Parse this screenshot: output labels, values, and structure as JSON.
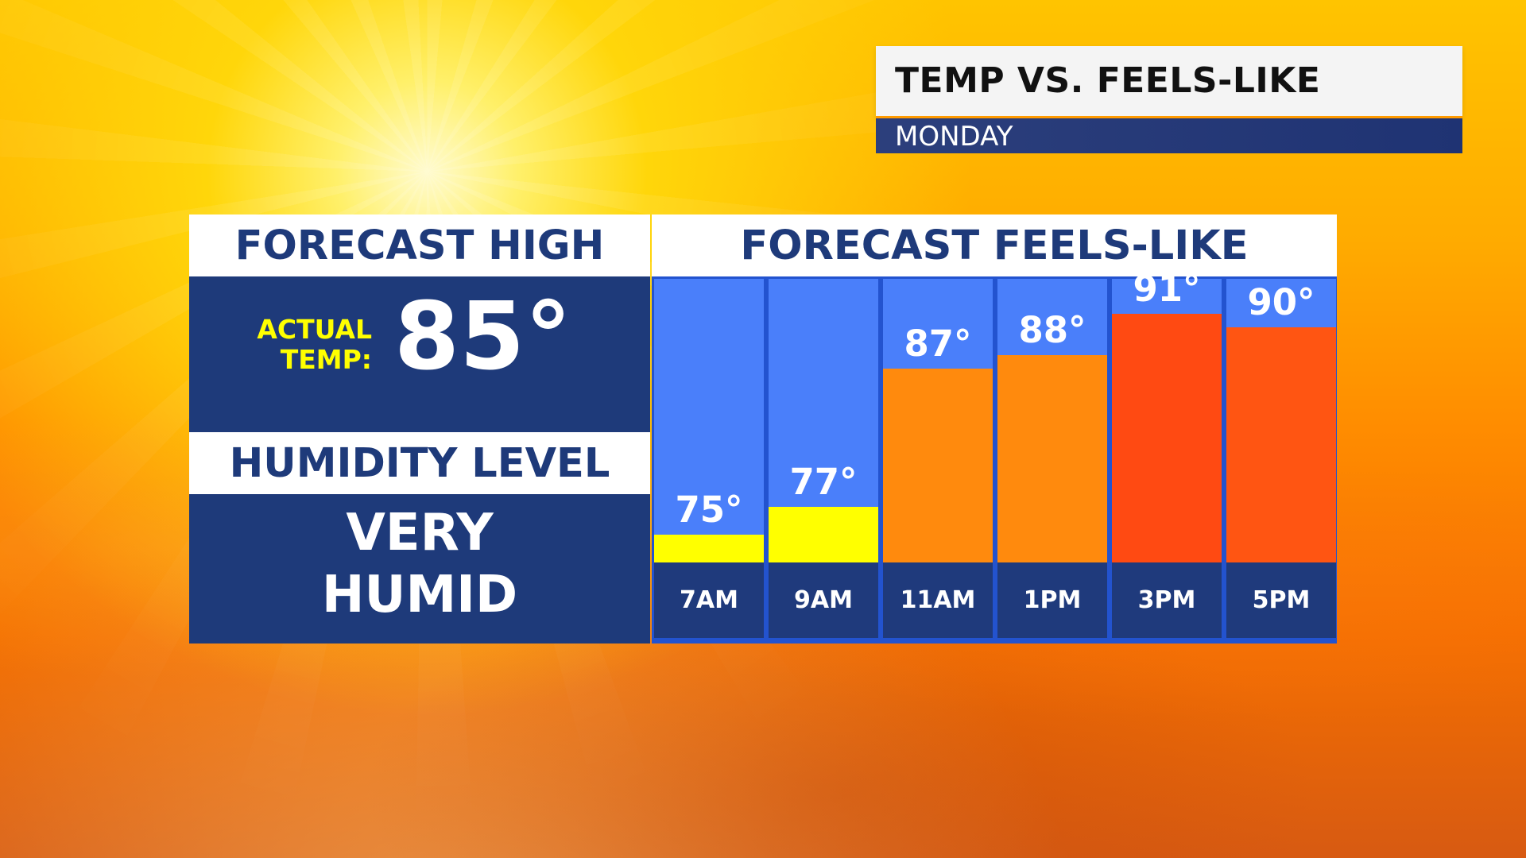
{
  "header": {
    "title": "TEMP VS. FEELS-LIKE",
    "subtitle": "MONDAY"
  },
  "left_panel": {
    "forecast_high_heading": "FORECAST HIGH",
    "actual_temp_label": "ACTUAL\nTEMP:",
    "actual_temp_value": "85°",
    "humidity_heading": "HUMIDITY LEVEL",
    "humidity_value": "VERY\nHUMID"
  },
  "colors": {
    "navy": "#1e3a7a",
    "sky_blue": "#4a7ffa",
    "yellow": "#ffff00",
    "orange": "#ff8a0d",
    "red_orange": "#ff4a12",
    "deep_orange": "#ff5512"
  },
  "chart_data": {
    "type": "bar",
    "title": "FORECAST FEELS-LIKE",
    "categories": [
      "7AM",
      "9AM",
      "11AM",
      "1PM",
      "3PM",
      "5PM"
    ],
    "values": [
      75,
      77,
      87,
      88,
      91,
      90
    ],
    "value_labels": [
      "75°",
      "77°",
      "87°",
      "88°",
      "91°",
      "90°"
    ],
    "bar_colors": [
      "#ffff00",
      "#ffff00",
      "#ff8a0d",
      "#ff8a0d",
      "#ff4a12",
      "#ff5512"
    ],
    "ylim": [
      73,
      93.5
    ]
  }
}
